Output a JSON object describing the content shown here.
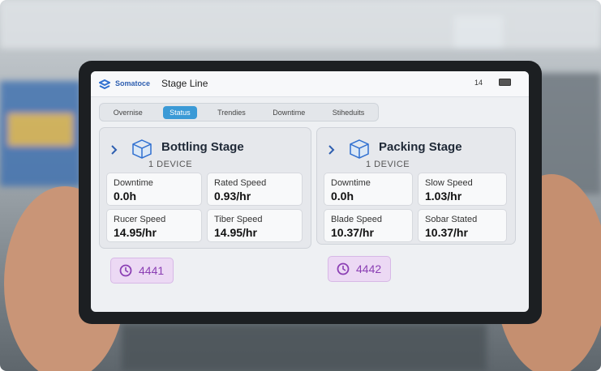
{
  "header": {
    "brand": "Somatoce",
    "title": "Stage Line",
    "status": "14"
  },
  "tabs": [
    "Overnise",
    "Status",
    "Trendies",
    "Downtime",
    "Stiheduits"
  ],
  "cards": [
    {
      "title": "Bottling Stage",
      "subtitle": "1 DEVICE",
      "metrics": [
        {
          "label": "Downtime",
          "value": "0.0h"
        },
        {
          "label": "Rated Speed",
          "value": "0.93/hr"
        },
        {
          "label": "Rucer Speed",
          "value": "14.95/hr"
        },
        {
          "label": "Tiber Speed",
          "value": "14.95/hr"
        }
      ],
      "badge": "4441"
    },
    {
      "title": "Packing Stage",
      "subtitle": "1 DEVICE",
      "metrics": [
        {
          "label": "Downtime",
          "value": "0.0h"
        },
        {
          "label": "Slow Speed",
          "value": "1.03/hr"
        },
        {
          "label": "Blade Speed",
          "value": "10.37/hr"
        },
        {
          "label": "Sobar Stated",
          "value": "10.37/hr"
        }
      ],
      "badge": "4442"
    }
  ]
}
